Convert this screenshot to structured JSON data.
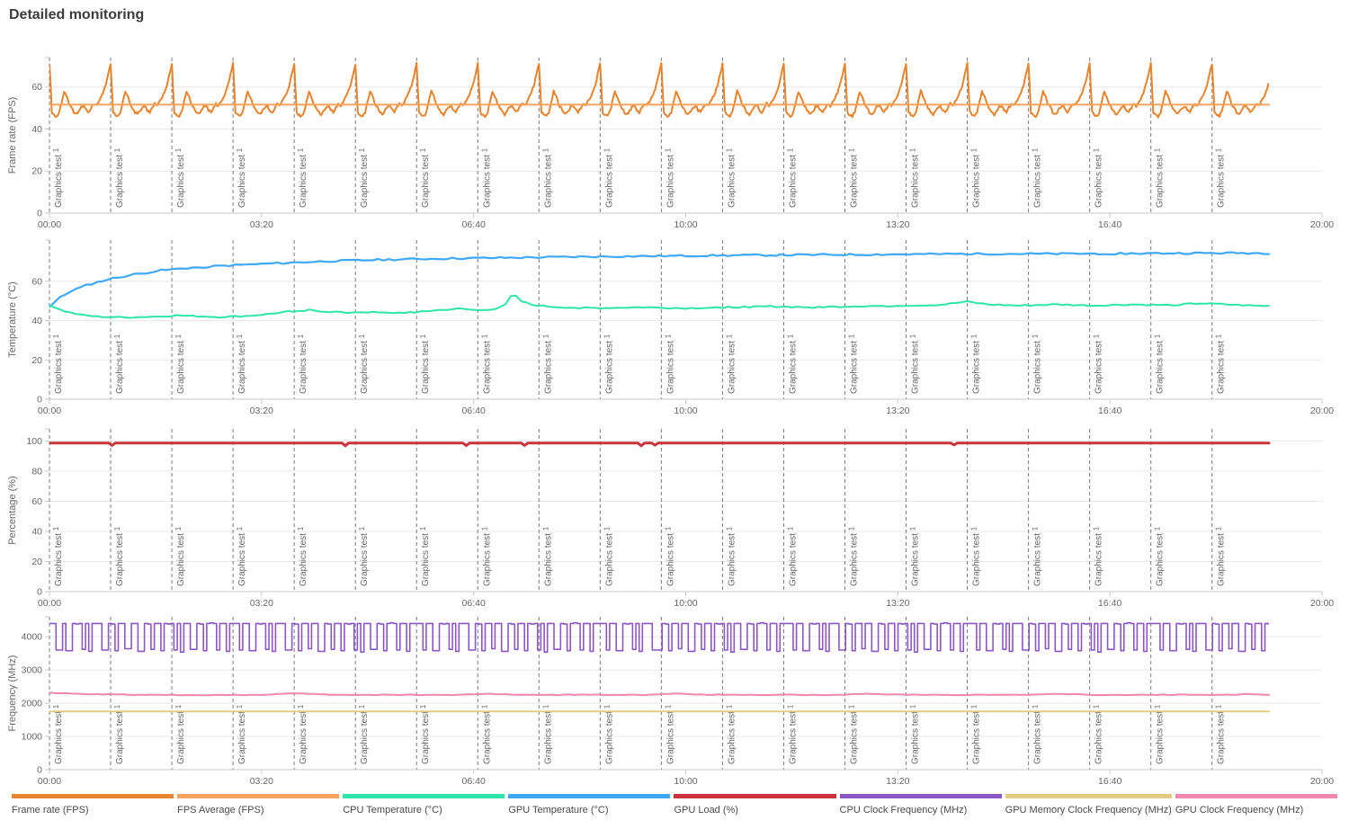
{
  "title": "Detailed monitoring",
  "legend": [
    {
      "label": "Frame rate (FPS)",
      "color": "#e8842e"
    },
    {
      "label": "FPS Average (FPS)",
      "color": "#f8a35d"
    },
    {
      "label": "CPU Temperature (°C)",
      "color": "#2ee5a9"
    },
    {
      "label": "GPU Temperature (°C)",
      "color": "#3fa9f5"
    },
    {
      "label": "GPU Load (%)",
      "color": "#c9343d"
    },
    {
      "label": "CPU Clock Frequency (MHz)",
      "color": "#8c57c5"
    },
    {
      "label": "GPU Memory Clock Frequency (MHz)",
      "color": "#e2ca80"
    },
    {
      "label": "GPU Clock Frequency (MHz)",
      "color": "#ef87ae"
    }
  ],
  "time_axis": {
    "range_s": [
      0,
      1200
    ],
    "tick_interval_s": 200,
    "tick_labels": [
      "00:00",
      "03:20",
      "06:40",
      "10:00",
      "13:20",
      "16:40",
      "20:00"
    ]
  },
  "plotlines": {
    "label": "Graphics test 1",
    "count": 20,
    "interval_s": 57.7,
    "start_s": 0
  },
  "data_end_s": 1150,
  "chart_data": [
    {
      "type": "line",
      "ylabel": "Frame rate (FPS)",
      "ylim": [
        0,
        74
      ],
      "yticks": [
        0,
        20,
        40,
        60
      ],
      "series": [
        {
          "name": "Frame rate (FPS)",
          "color": "#e8842e",
          "width": 2,
          "mode": "cycle",
          "period_s": 57.7,
          "noise": 0.6,
          "seed": 11,
          "pattern": [
            71,
            48,
            46.5,
            46,
            48,
            53,
            58,
            55.5,
            52,
            50,
            48,
            47,
            48.5,
            50.5,
            51,
            49,
            48,
            50,
            52,
            51,
            53,
            55,
            57.5,
            61,
            66
          ]
        },
        {
          "name": "FPS Average (FPS)",
          "color": "#f8a35d",
          "width": 2,
          "mode": "points",
          "points": [
            [
              0,
              51.6
            ],
            [
              1150,
              51.6
            ]
          ]
        }
      ]
    },
    {
      "type": "line",
      "ylabel": "Temperature (°C)",
      "ylim": [
        0,
        81
      ],
      "yticks": [
        0,
        20,
        40,
        60
      ],
      "series": [
        {
          "name": "GPU Temperature (°C)",
          "color": "#3fa9f5",
          "width": 2.2,
          "mode": "points",
          "noise": 0.45,
          "seed": 7,
          "step_s": 5,
          "points": [
            [
              0,
              47
            ],
            [
              8,
              51
            ],
            [
              20,
              55
            ],
            [
              35,
              58
            ],
            [
              55,
              61
            ],
            [
              80,
              63.5
            ],
            [
              105,
              65.5
            ],
            [
              130,
              66.8
            ],
            [
              160,
              67.8
            ],
            [
              190,
              68.6
            ],
            [
              220,
              69.3
            ],
            [
              260,
              70.2
            ],
            [
              300,
              70.8
            ],
            [
              350,
              71.4
            ],
            [
              400,
              71.8
            ],
            [
              460,
              72.2
            ],
            [
              520,
              72.6
            ],
            [
              580,
              72.9
            ],
            [
              640,
              73.2
            ],
            [
              700,
              73.4
            ],
            [
              760,
              73.6
            ],
            [
              820,
              73.8
            ],
            [
              880,
              74
            ],
            [
              940,
              74
            ],
            [
              1000,
              74.1
            ],
            [
              1060,
              74.3
            ],
            [
              1120,
              74.4
            ],
            [
              1150,
              74.3
            ]
          ]
        },
        {
          "name": "CPU Temperature (°C)",
          "color": "#2ee5a9",
          "width": 2,
          "mode": "points",
          "noise": 0.35,
          "seed": 3,
          "step_s": 5,
          "points": [
            [
              0,
              48
            ],
            [
              12,
              45
            ],
            [
              28,
              43
            ],
            [
              45,
              42
            ],
            [
              70,
              41.6
            ],
            [
              100,
              42
            ],
            [
              120,
              42.6
            ],
            [
              140,
              42.2
            ],
            [
              160,
              41.8
            ],
            [
              185,
              42.3
            ],
            [
              205,
              43.2
            ],
            [
              225,
              44.6
            ],
            [
              245,
              45.4
            ],
            [
              260,
              44.6
            ],
            [
              280,
              44.2
            ],
            [
              300,
              44.3
            ],
            [
              320,
              43.8
            ],
            [
              340,
              44.2
            ],
            [
              360,
              45
            ],
            [
              385,
              46
            ],
            [
              405,
              45.2
            ],
            [
              420,
              46
            ],
            [
              430,
              48
            ],
            [
              437,
              54
            ],
            [
              444,
              50
            ],
            [
              455,
              48
            ],
            [
              470,
              47.2
            ],
            [
              490,
              46.6
            ],
            [
              520,
              46.4
            ],
            [
              560,
              46.8
            ],
            [
              600,
              46.3
            ],
            [
              640,
              46.8
            ],
            [
              680,
              47.2
            ],
            [
              720,
              46.8
            ],
            [
              760,
              47.3
            ],
            [
              800,
              47.6
            ],
            [
              840,
              48
            ],
            [
              865,
              49.6
            ],
            [
              885,
              48.2
            ],
            [
              915,
              47.6
            ],
            [
              950,
              48.2
            ],
            [
              985,
              47.6
            ],
            [
              1020,
              48.2
            ],
            [
              1055,
              47.8
            ],
            [
              1085,
              48.8
            ],
            [
              1110,
              48.2
            ],
            [
              1135,
              47.6
            ],
            [
              1150,
              47.4
            ]
          ]
        }
      ]
    },
    {
      "type": "line",
      "ylabel": "Percentage (%)",
      "ylim": [
        0,
        108
      ],
      "yticks": [
        0,
        20,
        40,
        60,
        80,
        100
      ],
      "series": [
        {
          "name": "GPU Load (%)",
          "color": "#c9343d",
          "width": 3,
          "mode": "points",
          "points": [
            [
              0,
              98.6
            ],
            [
              56,
              98.6
            ],
            [
              59,
              97
            ],
            [
              62,
              98.6
            ],
            [
              276,
              98.6
            ],
            [
              279,
              96.8
            ],
            [
              282,
              98.6
            ],
            [
              390,
              98.6
            ],
            [
              393,
              96.9
            ],
            [
              396,
              98.6
            ],
            [
              445,
              98.6
            ],
            [
              448,
              97
            ],
            [
              451,
              98.6
            ],
            [
              555,
              98.6
            ],
            [
              558,
              96.8
            ],
            [
              561,
              98.6
            ],
            [
              568,
              98.6
            ],
            [
              571,
              97.2
            ],
            [
              574,
              98.6
            ],
            [
              850,
              98.6
            ],
            [
              853,
              97.4
            ],
            [
              856,
              98.6
            ],
            [
              1150,
              98.6
            ]
          ]
        }
      ]
    },
    {
      "type": "line",
      "ylabel": "Frequency (MHz)",
      "ylim": [
        0,
        4600
      ],
      "yticks": [
        0,
        1000,
        2000,
        3000,
        4000
      ],
      "series": [
        {
          "name": "CPU Clock Frequency (MHz)",
          "color": "#8c57c5",
          "width": 1.6,
          "mode": "square",
          "period_s": 173,
          "pattern": [
            4400,
            4400,
            3600,
            4400,
            4400,
            3580,
            3580,
            4400,
            4380,
            4400,
            3620,
            4400,
            3560,
            4400,
            4400,
            4400,
            3600,
            3600,
            4400,
            4380,
            3580,
            4400,
            4400,
            3640,
            4400,
            4400,
            3560,
            3560,
            4400,
            4380,
            3620,
            4400,
            4400,
            3580,
            4400,
            4380,
            4400,
            3600,
            4400,
            3540,
            4400,
            4400,
            3620,
            3620,
            4400,
            4380,
            3580,
            4400,
            4420,
            4400,
            3600,
            4400,
            4400,
            3560,
            4400,
            4400
          ]
        },
        {
          "name": "GPU Memory Clock Frequency (MHz)",
          "color": "#e2ca80",
          "width": 2,
          "mode": "points",
          "points": [
            [
              0,
              1750
            ],
            [
              1150,
              1750
            ]
          ]
        },
        {
          "name": "GPU Clock Frequency (MHz)",
          "color": "#ef87ae",
          "width": 2,
          "mode": "points",
          "noise": 10,
          "seed": 5,
          "step_s": 5,
          "points": [
            [
              0,
              2310
            ],
            [
              40,
              2270
            ],
            [
              80,
              2255
            ],
            [
              120,
              2250
            ],
            [
              160,
              2245
            ],
            [
              200,
              2255
            ],
            [
              230,
              2300
            ],
            [
              260,
              2260
            ],
            [
              300,
              2250
            ],
            [
              340,
              2255
            ],
            [
              380,
              2250
            ],
            [
              410,
              2285
            ],
            [
              440,
              2260
            ],
            [
              480,
              2250
            ],
            [
              520,
              2255
            ],
            [
              560,
              2250
            ],
            [
              590,
              2290
            ],
            [
              620,
              2255
            ],
            [
              660,
              2250
            ],
            [
              700,
              2255
            ],
            [
              740,
              2250
            ],
            [
              770,
              2285
            ],
            [
              800,
              2255
            ],
            [
              840,
              2250
            ],
            [
              880,
              2255
            ],
            [
              920,
              2250
            ],
            [
              950,
              2280
            ],
            [
              980,
              2255
            ],
            [
              1020,
              2250
            ],
            [
              1060,
              2255
            ],
            [
              1100,
              2250
            ],
            [
              1130,
              2270
            ],
            [
              1150,
              2255
            ]
          ]
        }
      ]
    }
  ]
}
